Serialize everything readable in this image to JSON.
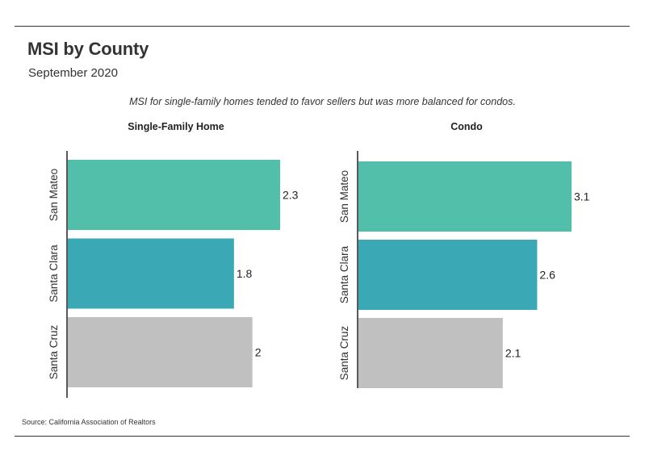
{
  "header": {
    "title": "MSI by County",
    "subtitle": "September 2020",
    "caption": "MSI for single-family homes tended to favor sellers but was more balanced for condos."
  },
  "footer": {
    "source": "Source:  California Association of Realtors"
  },
  "colors": {
    "San Mateo": "#52bfaa",
    "Santa Clara": "#3aa8b5",
    "Santa Cruz": "#c0c0c0"
  },
  "chart_data": [
    {
      "type": "bar",
      "orientation": "horizontal",
      "title": "Single-Family Home",
      "categories": [
        "San Mateo",
        "Santa Clara",
        "Santa Cruz"
      ],
      "values": [
        2.3,
        1.8,
        2
      ],
      "xlim": [
        0,
        2.3
      ],
      "xlabel": "",
      "ylabel": "",
      "grid": false,
      "data_labels": true
    },
    {
      "type": "bar",
      "orientation": "horizontal",
      "title": "Condo",
      "categories": [
        "San Mateo",
        "Santa Clara",
        "Santa Cruz"
      ],
      "values": [
        3.1,
        2.6,
        2.1
      ],
      "xlim": [
        0,
        3.1
      ],
      "xlabel": "",
      "ylabel": "",
      "grid": false,
      "data_labels": true
    }
  ]
}
